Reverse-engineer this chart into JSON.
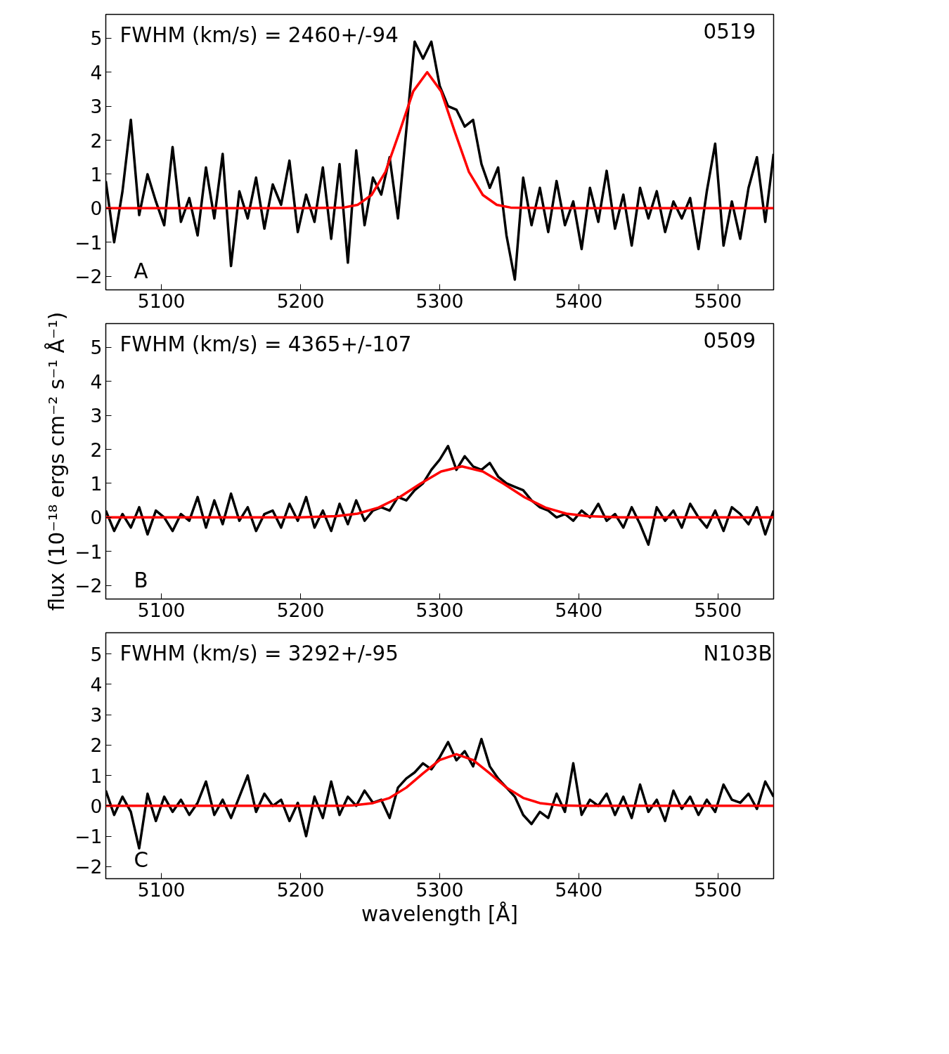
{
  "chart_data": [
    {
      "type": "line",
      "xlim": [
        5060,
        5540
      ],
      "ylim": [
        -2.4,
        5.7
      ],
      "xticks": [
        5100,
        5200,
        5300,
        5400,
        5500
      ],
      "yticks": [
        -2,
        -1,
        0,
        1,
        2,
        3,
        4,
        5
      ],
      "annotations": [
        "FWHM (km/s) = 2460+/-94",
        "0519",
        "A"
      ],
      "series": [
        {
          "color": "#000000",
          "x": [
            5060,
            5066,
            5072,
            5078,
            5084,
            5090,
            5096,
            5102,
            5108,
            5114,
            5120,
            5126,
            5132,
            5138,
            5144,
            5150,
            5156,
            5162,
            5168,
            5174,
            5180,
            5186,
            5192,
            5198,
            5204,
            5210,
            5216,
            5222,
            5228,
            5234,
            5240,
            5246,
            5252,
            5258,
            5264,
            5270,
            5276,
            5282,
            5288,
            5294,
            5300,
            5306,
            5312,
            5318,
            5324,
            5330,
            5336,
            5342,
            5348,
            5354,
            5360,
            5366,
            5372,
            5378,
            5384,
            5390,
            5396,
            5402,
            5408,
            5414,
            5420,
            5426,
            5432,
            5438,
            5444,
            5450,
            5456,
            5462,
            5468,
            5474,
            5480,
            5486,
            5492,
            5498,
            5504,
            5510,
            5516,
            5522,
            5528,
            5534,
            5540
          ],
          "values": [
            0.8,
            -1.0,
            0.5,
            2.6,
            -0.2,
            1.0,
            0.2,
            -0.5,
            1.8,
            -0.4,
            0.3,
            -0.8,
            1.2,
            -0.3,
            1.6,
            -1.7,
            0.5,
            -0.3,
            0.9,
            -0.6,
            0.7,
            0.1,
            1.4,
            -0.7,
            0.4,
            -0.4,
            1.2,
            -0.9,
            1.3,
            -1.6,
            1.7,
            -0.5,
            0.9,
            0.4,
            1.5,
            -0.3,
            2.3,
            4.9,
            4.4,
            4.9,
            3.6,
            3.0,
            2.9,
            2.4,
            2.6,
            1.3,
            0.6,
            1.2,
            -0.8,
            -2.1,
            0.9,
            -0.5,
            0.6,
            -0.7,
            0.8,
            -0.5,
            0.2,
            -1.2,
            0.6,
            -0.4,
            1.1,
            -0.6,
            0.4,
            -1.1,
            0.6,
            -0.3,
            0.5,
            -0.7,
            0.2,
            -0.3,
            0.3,
            -1.2,
            0.5,
            1.9,
            -1.1,
            0.2,
            -0.9,
            0.6,
            1.5,
            -0.4,
            1.6
          ]
        },
        {
          "color": "#ff0000",
          "x": [
            5060,
            5200,
            5231,
            5241,
            5251,
            5261,
            5271,
            5281,
            5291,
            5301,
            5311,
            5321,
            5331,
            5341,
            5351,
            5380,
            5540
          ],
          "values": [
            0,
            0,
            0.02,
            0.1,
            0.39,
            1.07,
            2.23,
            3.44,
            4.0,
            3.44,
            2.23,
            1.07,
            0.39,
            0.1,
            0.02,
            0,
            0
          ]
        }
      ]
    },
    {
      "type": "line",
      "ylabel": "flux (10⁻¹⁸ ergs cm⁻² s⁻¹ Å⁻¹)",
      "xlim": [
        5060,
        5540
      ],
      "ylim": [
        -2.4,
        5.7
      ],
      "xticks": [
        5100,
        5200,
        5300,
        5400,
        5500
      ],
      "yticks": [
        -2,
        -1,
        0,
        1,
        2,
        3,
        4,
        5
      ],
      "annotations": [
        "FWHM (km/s) = 4365+/-107",
        "0509",
        "B"
      ],
      "series": [
        {
          "color": "#000000",
          "x": [
            5060,
            5066,
            5072,
            5078,
            5084,
            5090,
            5096,
            5102,
            5108,
            5114,
            5120,
            5126,
            5132,
            5138,
            5144,
            5150,
            5156,
            5162,
            5168,
            5174,
            5180,
            5186,
            5192,
            5198,
            5204,
            5210,
            5216,
            5222,
            5228,
            5234,
            5240,
            5246,
            5252,
            5258,
            5264,
            5270,
            5276,
            5282,
            5288,
            5294,
            5300,
            5306,
            5312,
            5318,
            5324,
            5330,
            5336,
            5342,
            5348,
            5354,
            5360,
            5366,
            5372,
            5378,
            5384,
            5390,
            5396,
            5402,
            5408,
            5414,
            5420,
            5426,
            5432,
            5438,
            5444,
            5450,
            5456,
            5462,
            5468,
            5474,
            5480,
            5486,
            5492,
            5498,
            5504,
            5510,
            5516,
            5522,
            5528,
            5534,
            5540
          ],
          "values": [
            0.2,
            -0.4,
            0.1,
            -0.3,
            0.3,
            -0.5,
            0.2,
            0.0,
            -0.4,
            0.1,
            -0.1,
            0.6,
            -0.3,
            0.5,
            -0.2,
            0.7,
            -0.1,
            0.3,
            -0.4,
            0.1,
            0.2,
            -0.3,
            0.4,
            -0.1,
            0.6,
            -0.3,
            0.2,
            -0.4,
            0.4,
            -0.2,
            0.5,
            -0.1,
            0.2,
            0.3,
            0.2,
            0.6,
            0.5,
            0.8,
            1.0,
            1.4,
            1.7,
            2.1,
            1.4,
            1.8,
            1.5,
            1.4,
            1.6,
            1.2,
            1.0,
            0.9,
            0.8,
            0.5,
            0.3,
            0.2,
            0.0,
            0.1,
            -0.1,
            0.2,
            0.0,
            0.4,
            -0.1,
            0.1,
            -0.3,
            0.3,
            -0.2,
            -0.8,
            0.3,
            -0.1,
            0.2,
            -0.3,
            0.4,
            0.0,
            -0.3,
            0.2,
            -0.4,
            0.3,
            0.1,
            -0.2,
            0.3,
            -0.5,
            0.2
          ]
        },
        {
          "color": "#ff0000",
          "x": [
            5060,
            5200,
            5226,
            5241,
            5256,
            5271,
            5286,
            5301,
            5316,
            5331,
            5346,
            5361,
            5376,
            5391,
            5406,
            5430,
            5540
          ],
          "values": [
            0,
            0,
            0.04,
            0.11,
            0.29,
            0.59,
            0.99,
            1.35,
            1.5,
            1.35,
            0.99,
            0.59,
            0.29,
            0.11,
            0.04,
            0,
            0
          ]
        }
      ]
    },
    {
      "type": "line",
      "xlabel": "wavelength [Å]",
      "xlim": [
        5060,
        5540
      ],
      "ylim": [
        -2.4,
        5.7
      ],
      "xticks": [
        5100,
        5200,
        5300,
        5400,
        5500
      ],
      "yticks": [
        -2,
        -1,
        0,
        1,
        2,
        3,
        4,
        5
      ],
      "annotations": [
        "FWHM (km/s) = 3292+/-95",
        "N103B",
        "C"
      ],
      "series": [
        {
          "color": "#000000",
          "x": [
            5060,
            5066,
            5072,
            5078,
            5084,
            5090,
            5096,
            5102,
            5108,
            5114,
            5120,
            5126,
            5132,
            5138,
            5144,
            5150,
            5156,
            5162,
            5168,
            5174,
            5180,
            5186,
            5192,
            5198,
            5204,
            5210,
            5216,
            5222,
            5228,
            5234,
            5240,
            5246,
            5252,
            5258,
            5264,
            5270,
            5276,
            5282,
            5288,
            5294,
            5300,
            5306,
            5312,
            5318,
            5324,
            5330,
            5336,
            5342,
            5348,
            5354,
            5360,
            5366,
            5372,
            5378,
            5384,
            5390,
            5396,
            5402,
            5408,
            5414,
            5420,
            5426,
            5432,
            5438,
            5444,
            5450,
            5456,
            5462,
            5468,
            5474,
            5480,
            5486,
            5492,
            5498,
            5504,
            5510,
            5516,
            5522,
            5528,
            5534,
            5540
          ],
          "values": [
            0.5,
            -0.3,
            0.3,
            -0.2,
            -1.4,
            0.4,
            -0.5,
            0.3,
            -0.2,
            0.2,
            -0.3,
            0.1,
            0.8,
            -0.3,
            0.2,
            -0.4,
            0.3,
            1.0,
            -0.2,
            0.4,
            0.0,
            0.2,
            -0.5,
            0.1,
            -1.0,
            0.3,
            -0.4,
            0.8,
            -0.3,
            0.3,
            0.0,
            0.5,
            0.1,
            0.2,
            -0.4,
            0.6,
            0.9,
            1.1,
            1.4,
            1.2,
            1.6,
            2.1,
            1.5,
            1.8,
            1.3,
            2.2,
            1.3,
            0.9,
            0.6,
            0.3,
            -0.3,
            -0.6,
            -0.2,
            -0.4,
            0.4,
            -0.2,
            1.4,
            -0.3,
            0.2,
            0.0,
            0.4,
            -0.3,
            0.3,
            -0.4,
            0.7,
            -0.2,
            0.2,
            -0.5,
            0.5,
            -0.1,
            0.3,
            -0.3,
            0.2,
            -0.2,
            0.7,
            0.2,
            0.1,
            0.4,
            -0.1,
            0.8,
            0.3
          ]
        },
        {
          "color": "#ff0000",
          "x": [
            5060,
            5230,
            5237,
            5252,
            5264,
            5276,
            5288,
            5300,
            5312,
            5324,
            5336,
            5348,
            5360,
            5372,
            5387,
            5400,
            5540
          ],
          "values": [
            0,
            0,
            0.01,
            0.09,
            0.26,
            0.6,
            1.07,
            1.51,
            1.7,
            1.51,
            1.07,
            0.6,
            0.26,
            0.09,
            0.01,
            0,
            0
          ]
        }
      ]
    }
  ]
}
